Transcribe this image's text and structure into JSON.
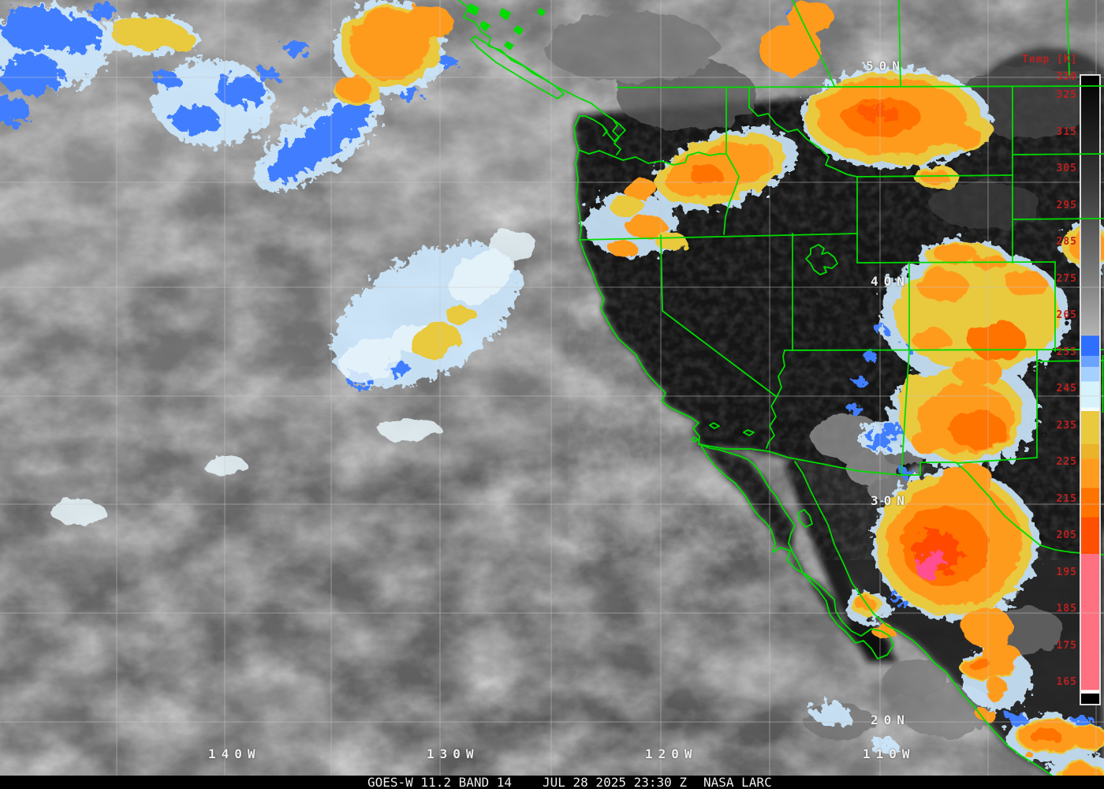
{
  "image_type": "GOES-West infrared satellite image with temperature enhancement",
  "caption": {
    "product": "GOES-W 11.2 BAND 14",
    "timestamp": "JUL 28 2025 23:30 Z",
    "credit": "NASA LARC"
  },
  "colorbar": {
    "title": "Temp [K]",
    "tick_values": [
      330,
      325,
      315,
      305,
      295,
      285,
      275,
      265,
      255,
      245,
      235,
      225,
      215,
      205,
      195,
      185,
      175,
      165
    ],
    "tick_color": "#bb2121",
    "title_color": "#bb2121",
    "gradient_stops": [
      {
        "k": 330,
        "color": "#020202"
      },
      {
        "k": 300,
        "color": "#3a3a3a"
      },
      {
        "k": 275,
        "color": "#7d7d7d"
      },
      {
        "k": 259.5,
        "color": "#b4b4b4"
      },
      {
        "k": 259.5,
        "color": "#2f6fff"
      },
      {
        "k": 254,
        "color": "#2f6fff"
      },
      {
        "k": 254,
        "color": "#6aa4ff"
      },
      {
        "k": 251,
        "color": "#6aa4ff"
      },
      {
        "k": 251,
        "color": "#a5d0ff"
      },
      {
        "k": 247,
        "color": "#a5d0ff"
      },
      {
        "k": 247,
        "color": "#d6f3fc"
      },
      {
        "k": 240,
        "color": "#d6f3fc"
      },
      {
        "k": 240,
        "color": "#f6fdff"
      },
      {
        "k": 239,
        "color": "#f6fdff"
      },
      {
        "k": 239,
        "color": "#e9c93e"
      },
      {
        "k": 230,
        "color": "#e9c93e"
      },
      {
        "k": 230,
        "color": "#eab32a"
      },
      {
        "k": 226,
        "color": "#eab32a"
      },
      {
        "k": 226,
        "color": "#ff9b1d"
      },
      {
        "k": 218,
        "color": "#ff9b1d"
      },
      {
        "k": 218,
        "color": "#ff7300"
      },
      {
        "k": 210,
        "color": "#ff7300"
      },
      {
        "k": 210,
        "color": "#ff4f00"
      },
      {
        "k": 200,
        "color": "#ff4f00"
      },
      {
        "k": 200,
        "color": "#ff7080"
      },
      {
        "k": 163,
        "color": "#ff7080"
      },
      {
        "k": 163,
        "color": "#ffffff"
      },
      {
        "k": 162,
        "color": "#ffffff"
      },
      {
        "k": 162,
        "color": "#000000"
      },
      {
        "k": 159,
        "color": "#000000"
      }
    ]
  },
  "grid": {
    "lat_labels": [
      "50N",
      "40N",
      "30N",
      "20N"
    ],
    "lon_labels": [
      "140W",
      "130W",
      "120W",
      "110W"
    ],
    "label_color": "#efefef",
    "line_color": "#c8c8c8"
  },
  "map": {
    "border_color": "#00dc00"
  }
}
